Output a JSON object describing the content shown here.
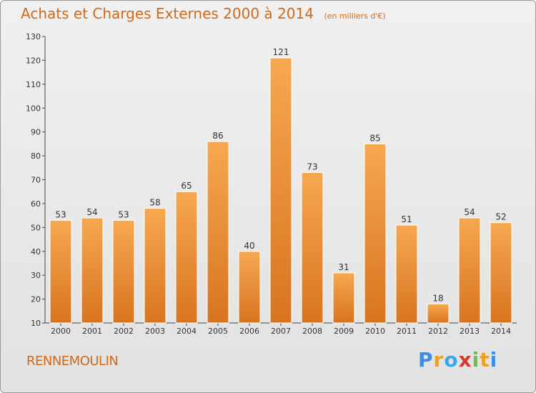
{
  "title": "Achats et Charges Externes 2000 à 2014",
  "subtitle": "(en milliers d'€)",
  "commune": "RENNEMOULIN",
  "logo": {
    "letters": [
      "P",
      "r",
      "o",
      "x",
      "i",
      "t",
      "i"
    ],
    "colors": [
      "#3a8ee6",
      "#f0a020",
      "#3aa8e6",
      "#d43a2a",
      "#6cc04a",
      "#f0a020",
      "#3a8ee6"
    ]
  },
  "colors": {
    "accent": "#d06a1a",
    "bar_top": "#f6a850",
    "bar_bottom": "#d87420"
  },
  "chart_data": {
    "type": "bar",
    "title": "Achats et Charges Externes 2000 à 2014",
    "subtitle": "(en milliers d'€)",
    "xlabel": "",
    "ylabel": "",
    "categories": [
      "2000",
      "2001",
      "2002",
      "2003",
      "2004",
      "2005",
      "2006",
      "2007",
      "2008",
      "2009",
      "2010",
      "2011",
      "2012",
      "2013",
      "2014"
    ],
    "values": [
      53,
      54,
      53,
      58,
      65,
      86,
      40,
      121,
      73,
      31,
      85,
      51,
      18,
      54,
      52
    ],
    "ylim": [
      10,
      130
    ],
    "yticks": [
      10,
      20,
      30,
      40,
      50,
      60,
      70,
      80,
      90,
      100,
      110,
      120,
      130
    ],
    "grid": false,
    "legend": "none"
  }
}
